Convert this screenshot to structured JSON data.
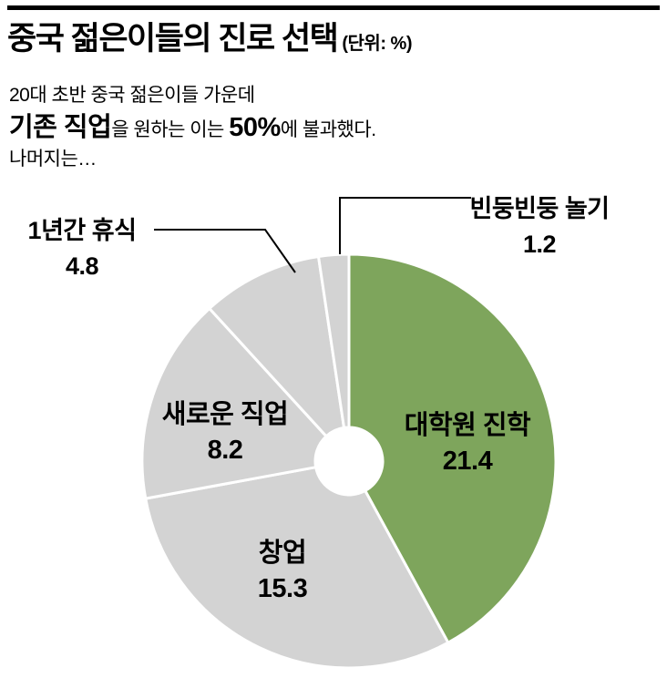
{
  "header": {
    "title": "중국 젊은이들의 진로 선택",
    "unit": "(단위: %)"
  },
  "intro": {
    "line1": "20대 초반 중국 젊은이들 가운데",
    "emph1": "기존 직업",
    "mid": "을 원하는 이는 ",
    "emph2": "50%",
    "tail": "에 불과했다.",
    "line3": "나머지는…"
  },
  "chart_data": {
    "type": "pie",
    "style": "donut",
    "title": "중국 젊은이들의 진로 선택",
    "unit": "%",
    "start_position": "top",
    "direction": "clockwise",
    "categories": [
      "대학원 진학",
      "창업",
      "새로운 직업",
      "1년간 휴식",
      "빈둥빈둥 놀기"
    ],
    "values": [
      21.4,
      15.3,
      8.2,
      4.8,
      1.2
    ],
    "colors": [
      "#7ea55c",
      "#d3d3d3",
      "#d3d3d3",
      "#d3d3d3",
      "#d3d3d3"
    ],
    "highlight_color": "#7ea55c",
    "gray_color": "#d3d3d3",
    "label_placement": [
      "inside",
      "inside",
      "inside",
      "outside-callout",
      "outside-callout"
    ]
  }
}
